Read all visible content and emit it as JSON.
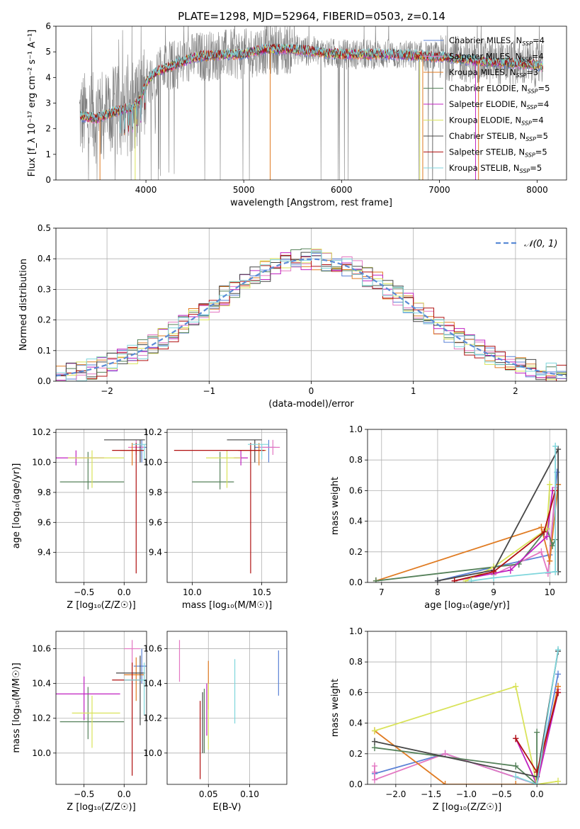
{
  "figure_title": "PLATE=1298, MJD=52964, FIBERID=0503, z=0.14",
  "colors": {
    "chabrier_miles": "#5b82d6",
    "salpeter_miles": "#e377c2",
    "kroupa_miles": "#e07b22",
    "chabrier_elodie": "#55815a",
    "salpeter_elodie": "#c020c0",
    "kroupa_elodie": "#d9e35a",
    "chabrier_stelib": "#474747",
    "salpeter_stelib": "#b01010",
    "kroupa_stelib": "#7fd6dc",
    "data": "#808080"
  },
  "chart_data": [
    {
      "id": "spectrum",
      "type": "line",
      "title": "",
      "xlabel": "wavelength [Angstrom, rest frame]",
      "ylabel": "Flux [f_λ 10⁻¹⁷ erg cm⁻² s⁻¹ A⁻¹]",
      "xlim": [
        3080,
        8300
      ],
      "ylim": [
        0,
        6
      ],
      "xticks": [
        4000,
        5000,
        6000,
        7000,
        8000
      ],
      "yticks": [
        0,
        1,
        2,
        3,
        4,
        5,
        6
      ],
      "legend_placement": "right",
      "legend": [
        {
          "label": "Chabrier MILES, N",
          "sub": "SSP",
          "tail": "=4",
          "key": "chabrier_miles"
        },
        {
          "label": "Salpeter MILES, N",
          "sub": "SSP",
          "tail": "=4",
          "key": "salpeter_miles"
        },
        {
          "label": "Kroupa MILES, N",
          "sub": "SSP",
          "tail": "=3",
          "key": "kroupa_miles"
        },
        {
          "label": "Chabrier ELODIE, N",
          "sub": "SSP",
          "tail": "=5",
          "key": "chabrier_elodie"
        },
        {
          "label": "Salpeter ELODIE, N",
          "sub": "SSP",
          "tail": "=4",
          "key": "salpeter_elodie"
        },
        {
          "label": "Kroupa ELODIE, N",
          "sub": "SSP",
          "tail": "=4",
          "key": "kroupa_elodie"
        },
        {
          "label": "Chabrier STELIB, N",
          "sub": "SSP",
          "tail": "=5",
          "key": "chabrier_stelib"
        },
        {
          "label": "Salpeter STELIB, N",
          "sub": "SSP",
          "tail": "=5",
          "key": "salpeter_stelib"
        },
        {
          "label": "Kroupa STELIB, N",
          "sub": "SSP",
          "tail": "=5",
          "key": "kroupa_stelib"
        }
      ],
      "continuum": {
        "x": [
          3300,
          3500,
          3700,
          3850,
          3950,
          4000,
          4100,
          4300,
          4500,
          4800,
          5000,
          5200,
          5500,
          6000,
          6500,
          7000,
          7500,
          8000,
          8060
        ],
        "y": [
          2.5,
          2.4,
          2.7,
          2.8,
          3.2,
          3.8,
          4.2,
          4.5,
          4.8,
          4.9,
          4.9,
          5.1,
          5.1,
          4.9,
          4.9,
          4.8,
          4.6,
          4.5,
          4.4
        ]
      },
      "dropouts": [
        {
          "x": 3530,
          "key": "kroupa_miles"
        },
        {
          "x": 3890,
          "key": "kroupa_elodie"
        },
        {
          "x": 5270,
          "key": "kroupa_miles"
        },
        {
          "x": 6800,
          "key": "kroupa_elodie"
        },
        {
          "x": 6830,
          "key": "kroupa_miles"
        },
        {
          "x": 7370,
          "key": "salpeter_elodie"
        },
        {
          "x": 7400,
          "key": "kroupa_miles"
        }
      ]
    },
    {
      "id": "residuals",
      "type": "line",
      "xlabel": "(data-model)/error",
      "ylabel": "Normed distribution",
      "xlim": [
        -2.5,
        2.5
      ],
      "ylim": [
        0,
        0.5
      ],
      "xticks": [
        -2,
        -1,
        0,
        1,
        2
      ],
      "yticks": [
        0.0,
        0.1,
        0.2,
        0.3,
        0.4,
        0.5
      ],
      "legend_placement": "upper right",
      "reference_label": "𝒩(0, 1)",
      "reference_color": "#5b8bd6",
      "bin_width": 0.1
    },
    {
      "id": "age_vs_Z",
      "type": "scatter",
      "xlabel": "Z [log₁₀(Z/Z☉)]",
      "ylabel": "age  [log₁₀(age/yr)]",
      "xlim": [
        -0.85,
        0.28
      ],
      "ylim": [
        9.2,
        10.22
      ],
      "xticks": [
        -0.5,
        0.0
      ],
      "yticks": [
        9.4,
        9.6,
        9.8,
        10.0,
        10.2
      ],
      "points": [
        {
          "key": "chabrier_miles",
          "x": 0.22,
          "y": 10.1,
          "xerr": [
            0.1,
            0.06
          ],
          "yerr": [
            0.1,
            0.05
          ]
        },
        {
          "key": "salpeter_miles",
          "x": 0.15,
          "y": 10.1,
          "xerr": [
            0.1,
            0.1
          ],
          "yerr": [
            0.05,
            0.05
          ]
        },
        {
          "key": "kroupa_miles",
          "x": 0.1,
          "y": 10.08,
          "xerr": [
            0.15,
            0.1
          ],
          "yerr": [
            0.1,
            0.05
          ]
        },
        {
          "key": "chabrier_elodie",
          "x": -0.45,
          "y": 9.87,
          "xerr": [
            0.35,
            0.45
          ],
          "yerr": [
            0.05,
            0.2
          ]
        },
        {
          "key": "salpeter_elodie",
          "x": -0.6,
          "y": 10.03,
          "xerr": [
            0.25,
            0.35
          ],
          "yerr": [
            0.05,
            0.05
          ]
        },
        {
          "key": "kroupa_elodie",
          "x": -0.4,
          "y": 10.03,
          "xerr": [
            0.3,
            0.4
          ],
          "yerr": [
            0.2,
            0.05
          ]
        },
        {
          "key": "chabrier_stelib",
          "x": 0.2,
          "y": 10.15,
          "xerr": [
            0.45,
            0.06
          ],
          "yerr": [
            0.15,
            0.0
          ]
        },
        {
          "key": "salpeter_stelib",
          "x": 0.15,
          "y": 10.08,
          "xerr": [
            0.3,
            0.1
          ],
          "yerr": [
            0.82,
            0.05
          ]
        },
        {
          "key": "kroupa_stelib",
          "x": 0.25,
          "y": 10.12,
          "xerr": [
            0.15,
            0.03
          ],
          "yerr": [
            0.1,
            0.0
          ]
        }
      ]
    },
    {
      "id": "age_vs_mass",
      "type": "scatter",
      "xlabel": "mass [log₁₀(M/M☉)]",
      "ylabel": "",
      "xlim": [
        9.82,
        10.68
      ],
      "ylim": [
        9.2,
        10.22
      ],
      "xticks": [
        10.0,
        10.5
      ],
      "yticks": [
        9.4,
        9.6,
        9.8,
        10.0,
        10.2
      ],
      "points": [
        {
          "key": "chabrier_miles",
          "x": 10.55,
          "y": 10.1,
          "xerr": [
            0.1,
            0.05
          ],
          "yerr": [
            0.1,
            0.05
          ]
        },
        {
          "key": "salpeter_miles",
          "x": 10.58,
          "y": 10.1,
          "xerr": [
            0.1,
            0.05
          ],
          "yerr": [
            0.05,
            0.05
          ]
        },
        {
          "key": "kroupa_miles",
          "x": 10.48,
          "y": 10.08,
          "xerr": [
            0.15,
            0.05
          ],
          "yerr": [
            0.1,
            0.05
          ]
        },
        {
          "key": "chabrier_elodie",
          "x": 10.2,
          "y": 9.87,
          "xerr": [
            0.2,
            0.1
          ],
          "yerr": [
            0.05,
            0.2
          ]
        },
        {
          "key": "salpeter_elodie",
          "x": 10.35,
          "y": 10.03,
          "xerr": [
            0.05,
            0.05
          ],
          "yerr": [
            0.05,
            0.05
          ]
        },
        {
          "key": "kroupa_elodie",
          "x": 10.25,
          "y": 10.03,
          "xerr": [
            0.15,
            0.1
          ],
          "yerr": [
            0.2,
            0.05
          ]
        },
        {
          "key": "chabrier_stelib",
          "x": 10.45,
          "y": 10.15,
          "xerr": [
            0.2,
            0.05
          ],
          "yerr": [
            0.15,
            0.0
          ]
        },
        {
          "key": "salpeter_stelib",
          "x": 10.42,
          "y": 10.08,
          "xerr": [
            0.55,
            0.1
          ],
          "yerr": [
            0.82,
            0.05
          ]
        },
        {
          "key": "kroupa_stelib",
          "x": 10.5,
          "y": 10.12,
          "xerr": [
            0.1,
            0.05
          ],
          "yerr": [
            0.1,
            0.0
          ]
        }
      ]
    },
    {
      "id": "massweight_vs_age",
      "type": "line",
      "xlabel": "age  [log₁₀(age/yr)]",
      "ylabel": "mass weight",
      "xlim": [
        6.75,
        10.3
      ],
      "ylim": [
        0,
        1
      ],
      "xticks": [
        7,
        8,
        9,
        10
      ],
      "yticks": [
        0.0,
        0.2,
        0.4,
        0.6,
        0.8,
        1.0
      ],
      "series": [
        {
          "key": "chabrier_miles",
          "x": [
            8.0,
            9.0,
            10.0,
            10.13
          ],
          "y": [
            0.01,
            0.1,
            0.18,
            0.72
          ]
        },
        {
          "key": "salpeter_miles",
          "x": [
            9.0,
            9.85,
            9.97,
            10.1
          ],
          "y": [
            0.05,
            0.2,
            0.06,
            0.62
          ]
        },
        {
          "key": "kroupa_miles",
          "x": [
            6.9,
            9.85,
            10.0,
            10.15
          ],
          "y": [
            0.01,
            0.36,
            0.14,
            0.64
          ]
        },
        {
          "key": "chabrier_elodie",
          "x": [
            6.9,
            9.45,
            9.95,
            10.05,
            10.1
          ],
          "y": [
            0.01,
            0.12,
            0.35,
            0.24,
            0.28
          ]
        },
        {
          "key": "salpeter_elodie",
          "x": [
            8.3,
            9.3,
            9.95,
            10.05
          ],
          "y": [
            0.01,
            0.08,
            0.3,
            0.6
          ]
        },
        {
          "key": "kroupa_elodie",
          "x": [
            8.5,
            9.0,
            9.95,
            10.0
          ],
          "y": [
            0.01,
            0.1,
            0.35,
            0.64
          ]
        },
        {
          "key": "chabrier_stelib",
          "x": [
            8.0,
            9.0,
            10.15,
            10.15
          ],
          "y": [
            0.01,
            0.08,
            0.87,
            0.07
          ]
        },
        {
          "key": "salpeter_stelib",
          "x": [
            8.3,
            9.0,
            9.9,
            10.1
          ],
          "y": [
            0.01,
            0.07,
            0.33,
            0.6
          ]
        },
        {
          "key": "kroupa_stelib",
          "x": [
            8.6,
            9.0,
            10.1,
            10.1
          ],
          "y": [
            0.01,
            0.03,
            0.07,
            0.89
          ]
        }
      ]
    },
    {
      "id": "mass_vs_Z",
      "type": "scatter",
      "xlabel": "Z [log₁₀(Z/Z☉)]",
      "ylabel": "mass [log₁₀(M/M☉)]",
      "xlim": [
        -0.85,
        0.28
      ],
      "ylim": [
        9.82,
        10.7
      ],
      "xticks": [
        -0.5,
        0.0
      ],
      "yticks": [
        10.0,
        10.2,
        10.4,
        10.6
      ],
      "points": [
        {
          "key": "chabrier_miles",
          "x": 0.22,
          "y": 10.5,
          "xerr": [
            0.1,
            0.06
          ],
          "yerr": [
            0.1,
            0.1
          ]
        },
        {
          "key": "salpeter_miles",
          "x": 0.1,
          "y": 10.6,
          "xerr": [
            0.1,
            0.1
          ],
          "yerr": [
            0.1,
            0.05
          ]
        },
        {
          "key": "kroupa_miles",
          "x": 0.15,
          "y": 10.45,
          "xerr": [
            0.15,
            0.1
          ],
          "yerr": [
            0.15,
            0.1
          ]
        },
        {
          "key": "chabrier_elodie",
          "x": -0.45,
          "y": 10.18,
          "xerr": [
            0.35,
            0.45
          ],
          "yerr": [
            0.1,
            0.2
          ]
        },
        {
          "key": "salpeter_elodie",
          "x": -0.5,
          "y": 10.34,
          "xerr": [
            0.35,
            0.45
          ],
          "yerr": [
            0.15,
            0.1
          ]
        },
        {
          "key": "kroupa_elodie",
          "x": -0.4,
          "y": 10.23,
          "xerr": [
            0.25,
            0.35
          ],
          "yerr": [
            0.2,
            0.1
          ]
        },
        {
          "key": "chabrier_stelib",
          "x": 0.2,
          "y": 10.46,
          "xerr": [
            0.3,
            0.06
          ],
          "yerr": [
            0.3,
            0.1
          ]
        },
        {
          "key": "salpeter_stelib",
          "x": 0.1,
          "y": 10.42,
          "xerr": [
            0.25,
            0.1
          ],
          "yerr": [
            0.55,
            0.1
          ]
        },
        {
          "key": "kroupa_stelib",
          "x": 0.25,
          "y": 10.42,
          "xerr": [
            0.25,
            0.03
          ],
          "yerr": [
            0.2,
            0.1
          ]
        }
      ]
    },
    {
      "id": "mass_vs_ebv",
      "type": "scatter",
      "xlabel": "E(B-V)",
      "ylabel": "",
      "xlim": [
        0.0,
        0.145
      ],
      "ylim": [
        9.82,
        10.7
      ],
      "xticks": [
        0.05,
        0.1
      ],
      "yticks": [
        10.0,
        10.2,
        10.4,
        10.6
      ],
      "points": [
        {
          "key": "chabrier_miles",
          "x": 0.135,
          "y": 10.45,
          "yerr": [
            0.12,
            0.14
          ]
        },
        {
          "key": "salpeter_miles",
          "x": 0.015,
          "y": 10.53,
          "yerr": [
            0.12,
            0.12
          ]
        },
        {
          "key": "kroupa_miles",
          "x": 0.05,
          "y": 10.43,
          "yerr": [
            0.18,
            0.1
          ]
        },
        {
          "key": "chabrier_elodie",
          "x": 0.045,
          "y": 10.25,
          "yerr": [
            0.25,
            0.12
          ]
        },
        {
          "key": "salpeter_elodie",
          "x": 0.048,
          "y": 10.3,
          "yerr": [
            0.2,
            0.1
          ]
        },
        {
          "key": "kroupa_elodie",
          "x": 0.05,
          "y": 10.3,
          "yerr": [
            0.28,
            0.1
          ]
        },
        {
          "key": "chabrier_stelib",
          "x": 0.043,
          "y": 10.2,
          "yerr": [
            0.2,
            0.15
          ]
        },
        {
          "key": "salpeter_stelib",
          "x": 0.04,
          "y": 10.2,
          "yerr": [
            0.35,
            0.1
          ]
        },
        {
          "key": "kroupa_stelib",
          "x": 0.082,
          "y": 10.35,
          "yerr": [
            0.18,
            0.19
          ]
        }
      ]
    },
    {
      "id": "massweight_vs_Z",
      "type": "line",
      "xlabel": "Z [log₁₀(Z/Z☉)]",
      "ylabel": "mass weight",
      "xlim": [
        -2.4,
        0.42
      ],
      "ylim": [
        0,
        1
      ],
      "xticks": [
        -2.0,
        -1.5,
        -1.0,
        -0.5,
        0.0
      ],
      "yticks": [
        0.0,
        0.2,
        0.4,
        0.6,
        0.8,
        1.0
      ],
      "series": [
        {
          "key": "chabrier_miles",
          "x": [
            -2.3,
            -1.3,
            0.0,
            0.3
          ],
          "y": [
            0.07,
            0.2,
            0.0,
            0.72
          ]
        },
        {
          "key": "salpeter_miles",
          "x": [
            -2.3,
            -2.3,
            -2.3,
            -1.3,
            0.0,
            0.3
          ],
          "y": [
            0.08,
            0.12,
            0.03,
            0.2,
            0.0,
            0.62
          ]
        },
        {
          "key": "kroupa_miles",
          "x": [
            -2.3,
            -1.3,
            -0.3,
            0.0,
            0.3
          ],
          "y": [
            0.35,
            0.0,
            0.0,
            0.0,
            0.64
          ]
        },
        {
          "key": "chabrier_elodie",
          "x": [
            -2.3,
            -0.3,
            0.0,
            0.0
          ],
          "y": [
            0.24,
            0.12,
            0.0,
            0.34
          ]
        },
        {
          "key": "salpeter_elodie",
          "x": [
            -0.3,
            0.0,
            0.3
          ],
          "y": [
            0.3,
            0.0,
            0.6
          ]
        },
        {
          "key": "kroupa_elodie",
          "x": [
            -2.3,
            -0.3,
            0.0,
            0.3
          ],
          "y": [
            0.35,
            0.64,
            0.0,
            0.02
          ]
        },
        {
          "key": "chabrier_stelib",
          "x": [
            -2.3,
            0.0,
            0.3
          ],
          "y": [
            0.28,
            0.05,
            0.87
          ]
        },
        {
          "key": "salpeter_stelib",
          "x": [
            -0.3,
            0.0,
            0.3
          ],
          "y": [
            0.3,
            0.08,
            0.6
          ]
        },
        {
          "key": "kroupa_stelib",
          "x": [
            -0.3,
            0.0,
            0.3
          ],
          "y": [
            0.05,
            0.0,
            0.88
          ]
        }
      ]
    }
  ]
}
